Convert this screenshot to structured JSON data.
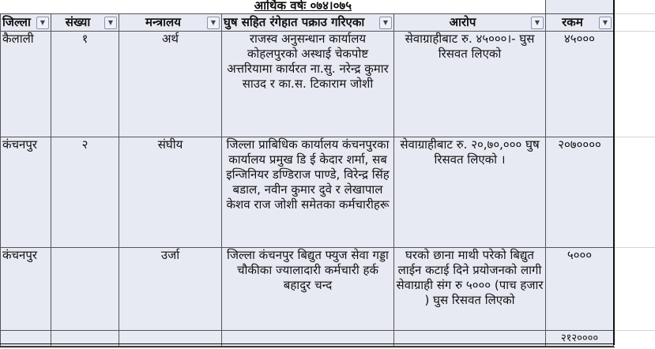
{
  "title": "आर्थिक वर्षः ०७४।०७५",
  "headers": [
    "जिल्ला",
    "संख्या",
    "मन्त्रालय",
    "घुष सहित रंगेहात पक्राउ गरिएका",
    "आरोप",
    "रकम"
  ],
  "rows": [
    {
      "district": "कैलाली",
      "number": "१",
      "ministry": "अर्थ",
      "person": "राजस्व अनुसन्धान कार्यालय कोहलपुरको अस्थाई चेकपोष्ट अत्तरियामा कार्यरत ना.सु.  नरेन्द्र कुमार साउद र का.स. टिकाराम जोशी",
      "allegation": "सेवाग्राहीबाट रु. ४५०००।- घुस रिसवत लिएको",
      "amount": "४५०००"
    },
    {
      "district": "कंचनपुर",
      "number": "२",
      "ministry": "संघीय",
      "person": "जिल्ला प्राबिधिक कार्यालय कंचनपुरका कार्यालय प्रमुख डि ई केदार शर्मा, सब इन्जिनियर डण्डिराज पाण्डे, विरेन्द्र सिंह बडाल, नवीन कुमार दुवे र लेखापाल  केशव राज जोशी समेतका कर्मचारीहरू",
      "allegation": "सेवाग्राहीबाट रु. २०,७०,००० घुष रिसवत लिएको ।",
      "amount": "२०७००००"
    },
    {
      "district": "कंचनपुर",
      "number": "",
      "ministry": "उर्जा",
      "person": "जिल्ला कंचनपुर बिद्युत फ्युज सेवा गड्डा चौकीका ज्यालादारी कर्मचारी हर्क बहादुर चन्द",
      "allegation": "घरको छाना माथी परेको बिद्युत लाईन कटाई दिने प्रयोजनको लागी सेवाग्राही संग रु ५००० (पाच हजार ) घुस रिसवत लिएको",
      "amount": "५०००"
    }
  ],
  "total": "२१२००००",
  "colors": {
    "cell_bg": "#e8eaf3",
    "border": "#555555"
  },
  "icons": {
    "filter": "dropdown-arrow-icon"
  }
}
